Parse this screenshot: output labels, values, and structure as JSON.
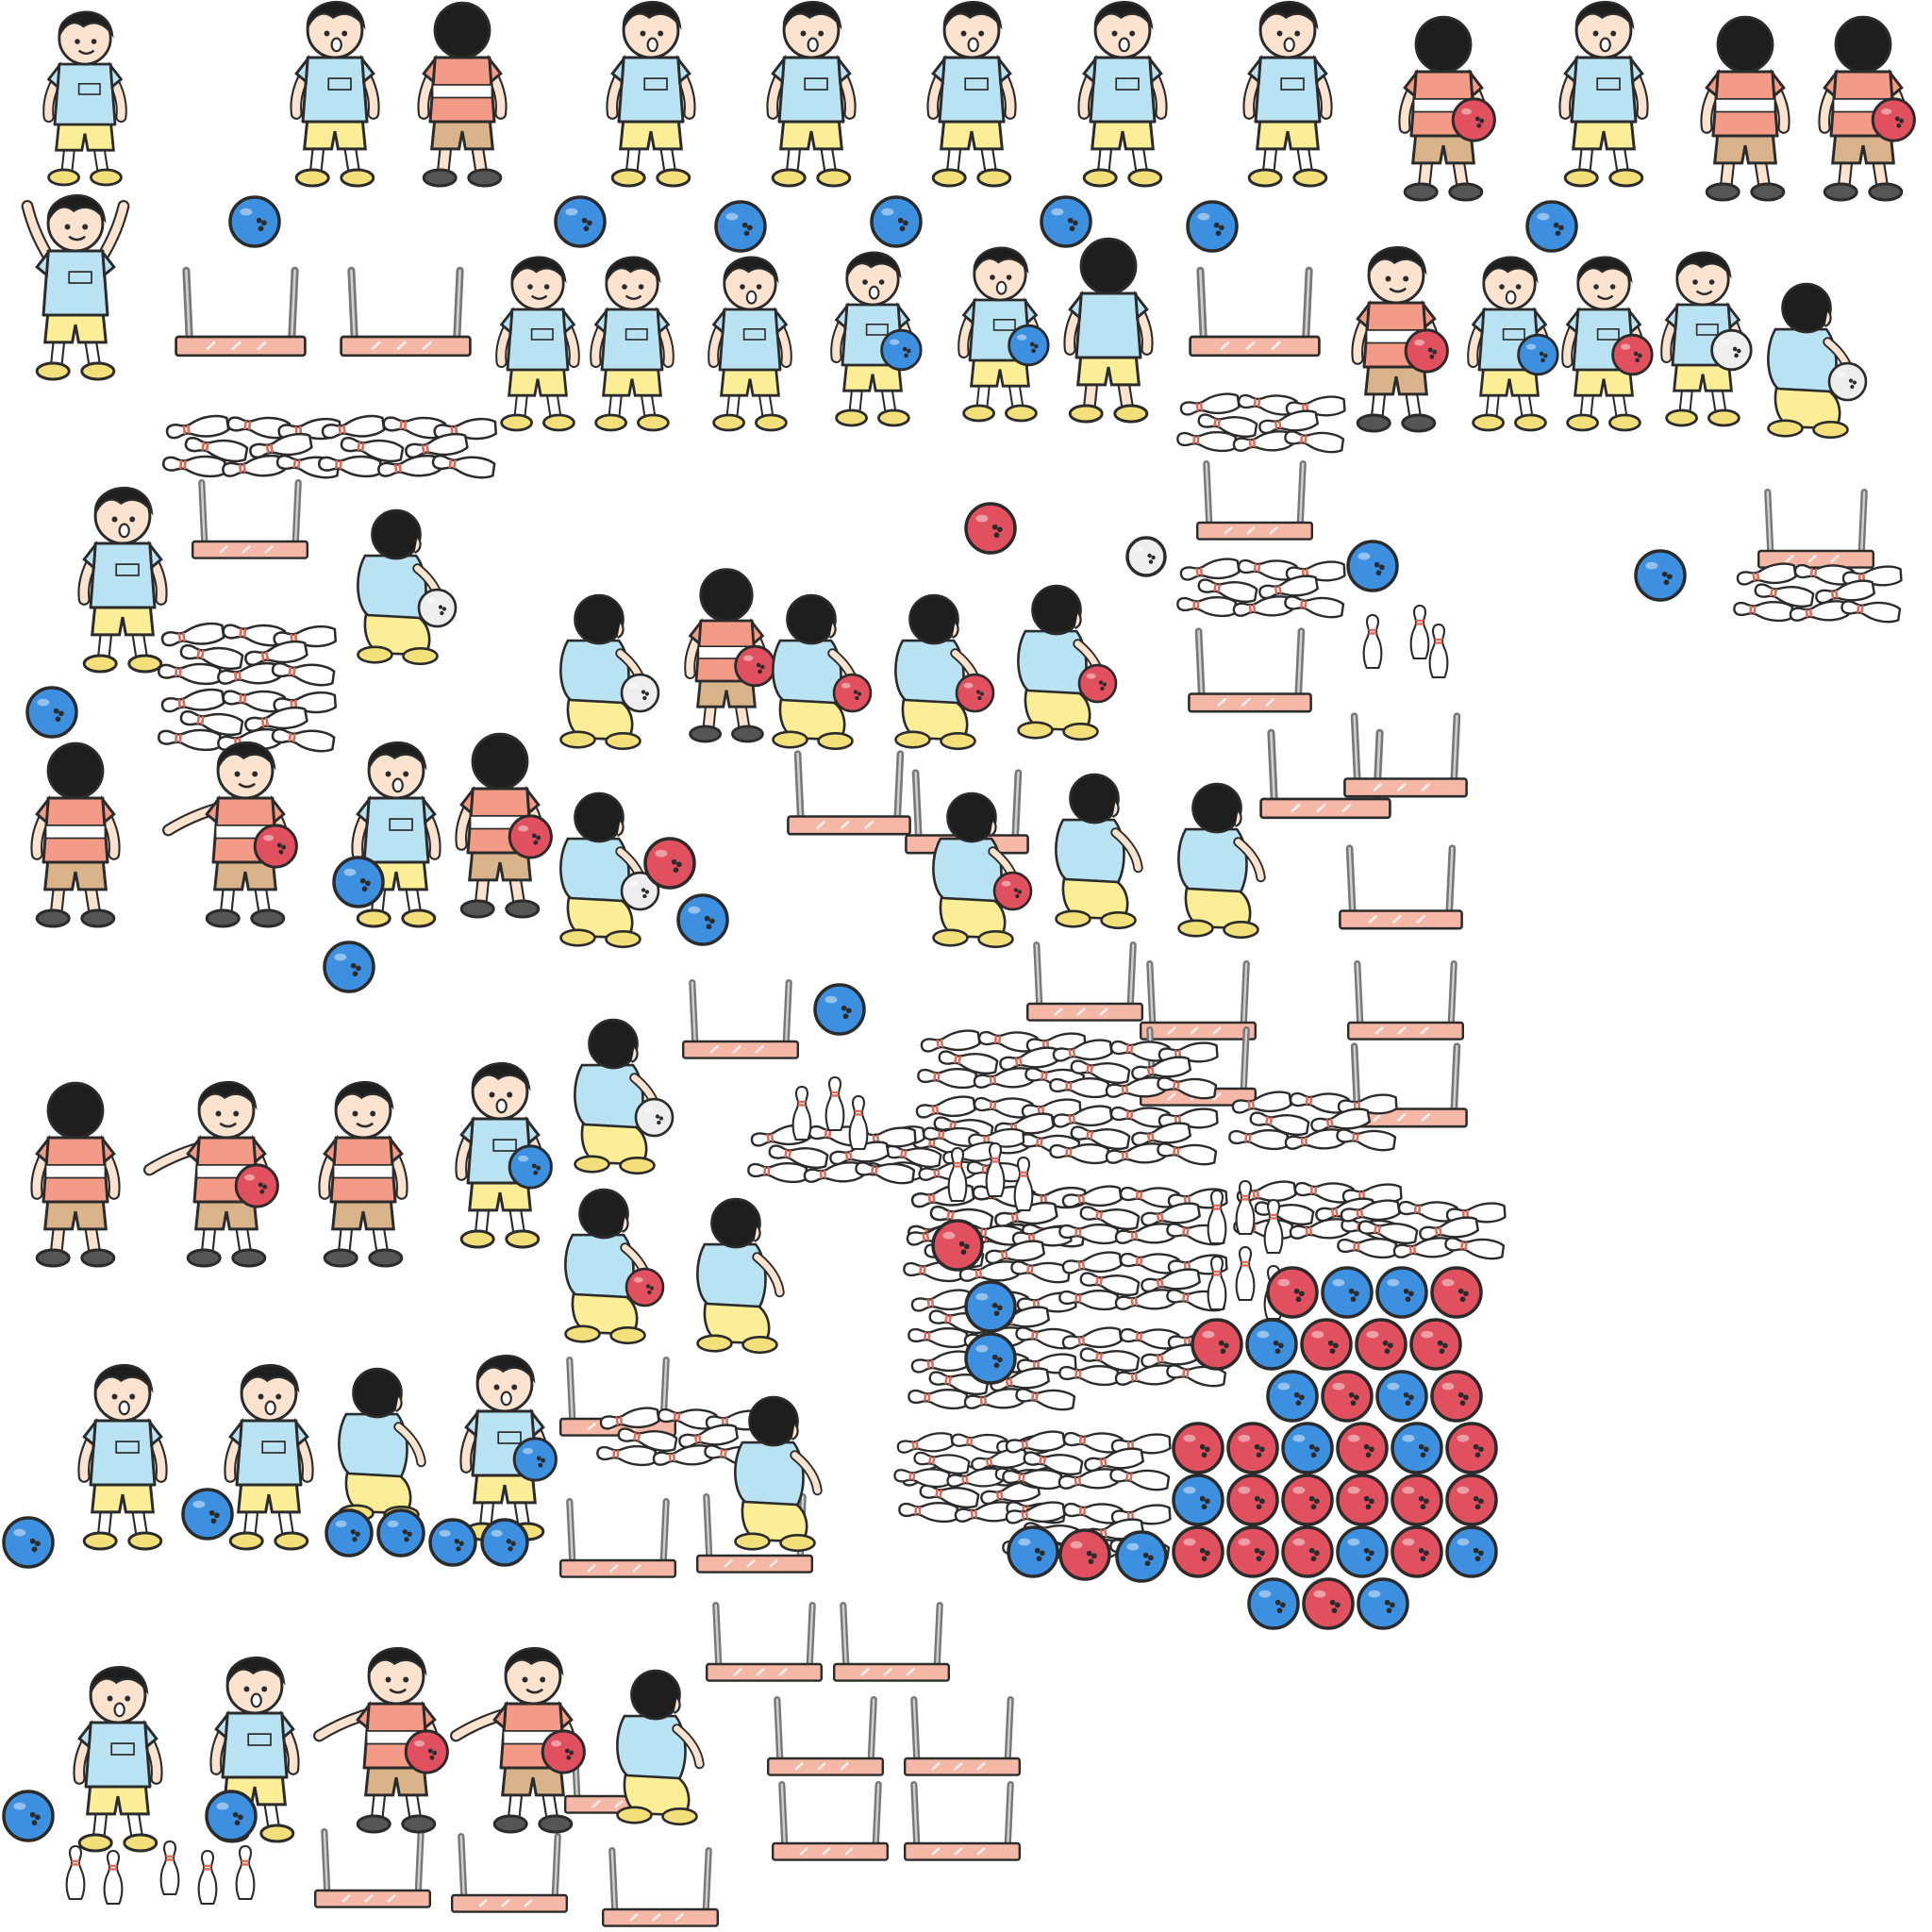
{
  "sheet": {
    "kind": "sprite-atlas",
    "subject": "bowling",
    "colors": {
      "outline": "#2b2b2b",
      "skin": "#fbe3cf",
      "hair": "#1e1e1e",
      "shirt_blue": "#b9e3f3",
      "shorts_yellow": "#fbee97",
      "shirt_stripe": "#f39b86",
      "shorts_tan": "#d9b48b",
      "shoe_yellow": "#f3e07a",
      "ball_blue": "#3d8fe0",
      "ball_red": "#e0505e",
      "ball_white": "#eeeeee",
      "pin_red": "#e06a5a",
      "rack_metal": "#777777",
      "rack_bar": "#f6b8a6"
    },
    "sprite_types": {
      "character": "boy-character",
      "ball": "bowling-ball",
      "pin": "bowling-pin",
      "rack": "pinsetter-rack",
      "fallen_pins": "fallen-pin-pile"
    }
  }
}
